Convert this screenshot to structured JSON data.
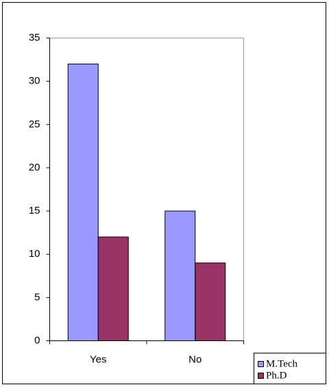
{
  "chart_data": {
    "type": "bar",
    "categories": [
      "Yes",
      "No"
    ],
    "series": [
      {
        "name": "M.Tech",
        "color": "#9999ff",
        "values": [
          32,
          15
        ]
      },
      {
        "name": "Ph.D",
        "color": "#993366",
        "values": [
          12,
          9
        ]
      }
    ],
    "ylim": [
      0,
      35
    ],
    "yticks": [
      0,
      5,
      10,
      15,
      20,
      25,
      30,
      35
    ],
    "grid": false,
    "legend": "bottom-right"
  }
}
